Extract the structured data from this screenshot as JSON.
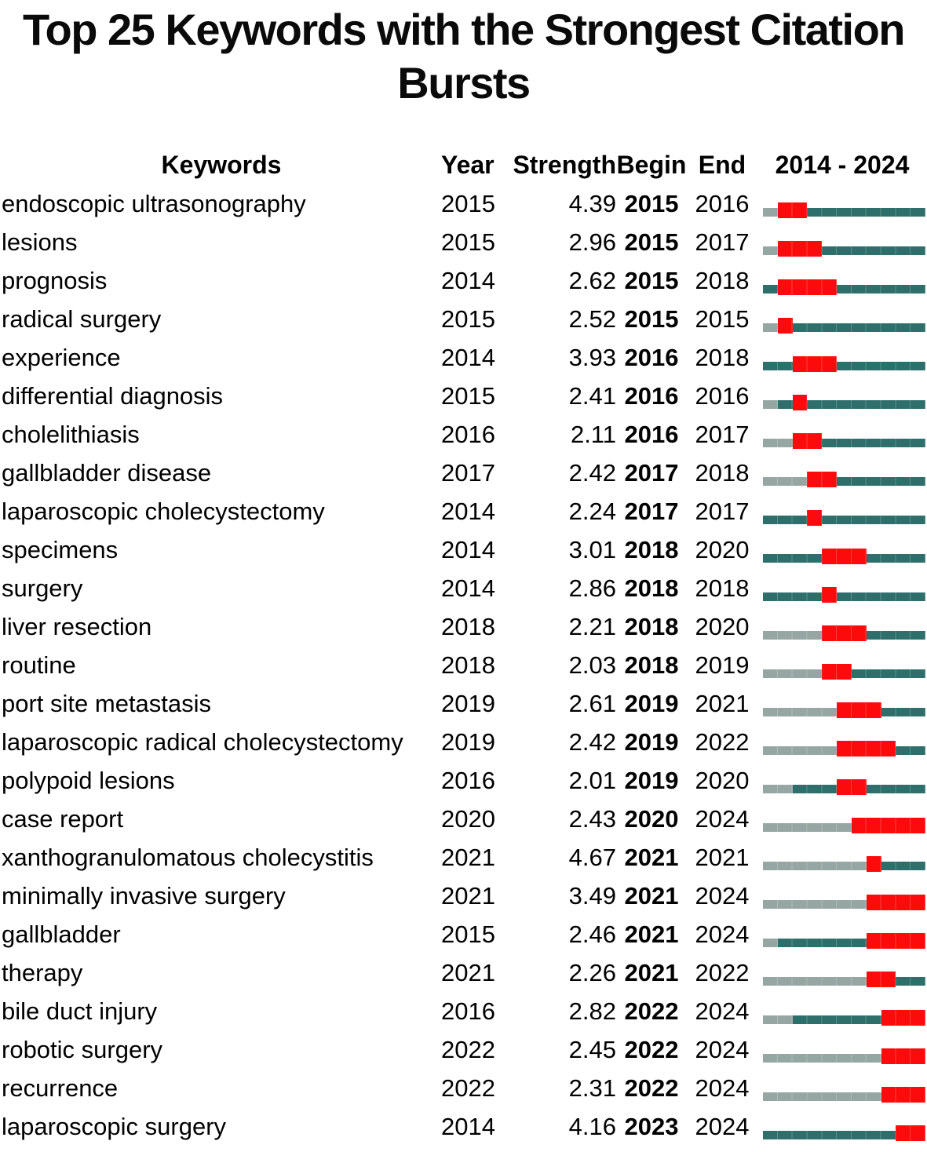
{
  "figure_title": "Top 25 Keywords with the Strongest Citation Bursts",
  "colors": {
    "burst_red": "#fb0b0b",
    "active_teal": "#2e6f6b",
    "inactive_gray": "#96a6a2",
    "text": "#000000",
    "background": "#ffffff"
  },
  "chart_data": {
    "type": "table",
    "title": "Top 25 Keywords with the Strongest Citation Bursts",
    "columns": [
      "Keywords",
      "Year",
      "Strength",
      "Begin",
      "End",
      "2014 - 2024"
    ],
    "timeline_range": [
      2014,
      2024
    ],
    "legend_note_colors": {
      "red_segment": "burst period (Begin–End)",
      "teal_segment": "keyword active period",
      "gray_segment": "before first appearance"
    },
    "rows": [
      {
        "keyword": "endoscopic ultrasonography",
        "year": 2015,
        "strength": "4.39",
        "begin": 2015,
        "end": 2016
      },
      {
        "keyword": "lesions",
        "year": 2015,
        "strength": "2.96",
        "begin": 2015,
        "end": 2017
      },
      {
        "keyword": "prognosis",
        "year": 2014,
        "strength": "2.62",
        "begin": 2015,
        "end": 2018
      },
      {
        "keyword": "radical surgery",
        "year": 2015,
        "strength": "2.52",
        "begin": 2015,
        "end": 2015
      },
      {
        "keyword": "experience",
        "year": 2014,
        "strength": "3.93",
        "begin": 2016,
        "end": 2018
      },
      {
        "keyword": "differential diagnosis",
        "year": 2015,
        "strength": "2.41",
        "begin": 2016,
        "end": 2016
      },
      {
        "keyword": "cholelithiasis",
        "year": 2016,
        "strength": "2.11",
        "begin": 2016,
        "end": 2017
      },
      {
        "keyword": "gallbladder disease",
        "year": 2017,
        "strength": "2.42",
        "begin": 2017,
        "end": 2018
      },
      {
        "keyword": "laparoscopic cholecystectomy",
        "year": 2014,
        "strength": "2.24",
        "begin": 2017,
        "end": 2017
      },
      {
        "keyword": "specimens",
        "year": 2014,
        "strength": "3.01",
        "begin": 2018,
        "end": 2020
      },
      {
        "keyword": "surgery",
        "year": 2014,
        "strength": "2.86",
        "begin": 2018,
        "end": 2018
      },
      {
        "keyword": "liver resection",
        "year": 2018,
        "strength": "2.21",
        "begin": 2018,
        "end": 2020
      },
      {
        "keyword": "routine",
        "year": 2018,
        "strength": "2.03",
        "begin": 2018,
        "end": 2019
      },
      {
        "keyword": "port site metastasis",
        "year": 2019,
        "strength": "2.61",
        "begin": 2019,
        "end": 2021
      },
      {
        "keyword": "laparoscopic radical cholecystectomy",
        "year": 2019,
        "strength": "2.42",
        "begin": 2019,
        "end": 2022
      },
      {
        "keyword": "polypoid lesions",
        "year": 2016,
        "strength": "2.01",
        "begin": 2019,
        "end": 2020
      },
      {
        "keyword": "case report",
        "year": 2020,
        "strength": "2.43",
        "begin": 2020,
        "end": 2024
      },
      {
        "keyword": "xanthogranulomatous cholecystitis",
        "year": 2021,
        "strength": "4.67",
        "begin": 2021,
        "end": 2021
      },
      {
        "keyword": "minimally invasive surgery",
        "year": 2021,
        "strength": "3.49",
        "begin": 2021,
        "end": 2024
      },
      {
        "keyword": "gallbladder",
        "year": 2015,
        "strength": "2.46",
        "begin": 2021,
        "end": 2024
      },
      {
        "keyword": "therapy",
        "year": 2021,
        "strength": "2.26",
        "begin": 2021,
        "end": 2022
      },
      {
        "keyword": "bile duct injury",
        "year": 2016,
        "strength": "2.82",
        "begin": 2022,
        "end": 2024
      },
      {
        "keyword": "robotic surgery",
        "year": 2022,
        "strength": "2.45",
        "begin": 2022,
        "end": 2024
      },
      {
        "keyword": "recurrence",
        "year": 2022,
        "strength": "2.31",
        "begin": 2022,
        "end": 2024
      },
      {
        "keyword": "laparoscopic surgery",
        "year": 2014,
        "strength": "4.16",
        "begin": 2023,
        "end": 2024
      }
    ]
  }
}
